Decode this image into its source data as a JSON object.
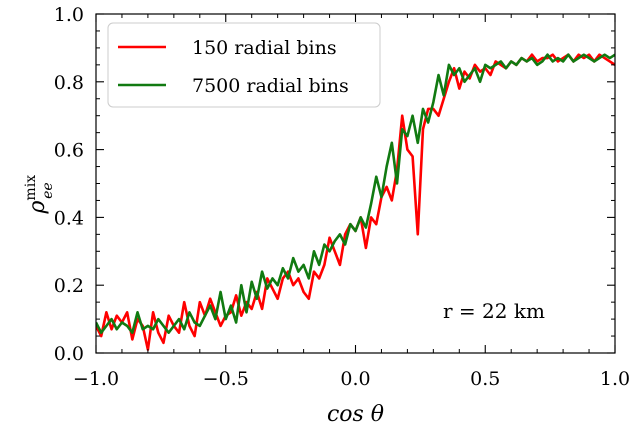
{
  "chart_data": {
    "type": "line",
    "title": "",
    "xlabel": "cos θ",
    "ylabel": "ρ",
    "ylabel_sup": "mix",
    "ylabel_sub": "ee",
    "xlim": [
      -1.0,
      1.0
    ],
    "ylim": [
      0.0,
      1.0
    ],
    "x_ticks": [
      -1.0,
      -0.5,
      0.0,
      0.5,
      1.0
    ],
    "x_tick_labels": [
      "−1.0",
      "−0.5",
      "0.0",
      "0.5",
      "1.0"
    ],
    "y_ticks": [
      0.0,
      0.2,
      0.4,
      0.6,
      0.8,
      1.0
    ],
    "y_tick_labels": [
      "0.0",
      "0.2",
      "0.4",
      "0.6",
      "0.8",
      "1.0"
    ],
    "grid": false,
    "legend_position": "top-left",
    "annotation": "r = 22 km",
    "series": [
      {
        "name": "150 radial bins",
        "color": "#ff0000",
        "x": [
          -1.0,
          -0.98,
          -0.96,
          -0.94,
          -0.92,
          -0.9,
          -0.88,
          -0.86,
          -0.84,
          -0.82,
          -0.8,
          -0.78,
          -0.76,
          -0.74,
          -0.72,
          -0.7,
          -0.68,
          -0.66,
          -0.64,
          -0.62,
          -0.6,
          -0.58,
          -0.56,
          -0.54,
          -0.52,
          -0.5,
          -0.48,
          -0.46,
          -0.44,
          -0.42,
          -0.4,
          -0.38,
          -0.36,
          -0.34,
          -0.32,
          -0.3,
          -0.28,
          -0.26,
          -0.24,
          -0.22,
          -0.2,
          -0.18,
          -0.16,
          -0.14,
          -0.12,
          -0.1,
          -0.08,
          -0.06,
          -0.04,
          -0.02,
          0.0,
          0.02,
          0.04,
          0.06,
          0.08,
          0.1,
          0.12,
          0.14,
          0.16,
          0.18,
          0.2,
          0.22,
          0.24,
          0.26,
          0.28,
          0.3,
          0.32,
          0.34,
          0.36,
          0.38,
          0.4,
          0.42,
          0.44,
          0.46,
          0.48,
          0.5,
          0.52,
          0.54,
          0.56,
          0.58,
          0.6,
          0.62,
          0.64,
          0.66,
          0.68,
          0.7,
          0.72,
          0.74,
          0.76,
          0.78,
          0.8,
          0.82,
          0.84,
          0.86,
          0.88,
          0.9,
          0.92,
          0.94,
          0.96,
          0.98,
          1.0
        ],
        "y": [
          0.08,
          0.05,
          0.12,
          0.07,
          0.11,
          0.09,
          0.12,
          0.04,
          0.1,
          0.08,
          0.01,
          0.12,
          0.06,
          0.03,
          0.11,
          0.08,
          0.06,
          0.15,
          0.08,
          0.05,
          0.15,
          0.11,
          0.16,
          0.12,
          0.08,
          0.11,
          0.12,
          0.17,
          0.11,
          0.15,
          0.13,
          0.18,
          0.13,
          0.22,
          0.19,
          0.16,
          0.22,
          0.24,
          0.2,
          0.22,
          0.18,
          0.16,
          0.24,
          0.22,
          0.26,
          0.34,
          0.3,
          0.26,
          0.35,
          0.38,
          0.36,
          0.4,
          0.31,
          0.4,
          0.38,
          0.46,
          0.49,
          0.45,
          0.54,
          0.7,
          0.6,
          0.58,
          0.35,
          0.66,
          0.72,
          0.72,
          0.7,
          0.75,
          0.8,
          0.84,
          0.78,
          0.83,
          0.81,
          0.85,
          0.83,
          0.84,
          0.82,
          0.86,
          0.85,
          0.84,
          0.86,
          0.85,
          0.87,
          0.86,
          0.88,
          0.86,
          0.87,
          0.87,
          0.88,
          0.86,
          0.87,
          0.88,
          0.86,
          0.88,
          0.87,
          0.88,
          0.86,
          0.88,
          0.87,
          0.86,
          0.85
        ]
      },
      {
        "name": "7500 radial bins",
        "color": "#117a11",
        "x": [
          -1.0,
          -0.98,
          -0.96,
          -0.94,
          -0.92,
          -0.9,
          -0.88,
          -0.86,
          -0.84,
          -0.82,
          -0.8,
          -0.78,
          -0.76,
          -0.74,
          -0.72,
          -0.7,
          -0.68,
          -0.66,
          -0.64,
          -0.62,
          -0.6,
          -0.58,
          -0.56,
          -0.54,
          -0.52,
          -0.5,
          -0.48,
          -0.46,
          -0.44,
          -0.42,
          -0.4,
          -0.38,
          -0.36,
          -0.34,
          -0.32,
          -0.3,
          -0.28,
          -0.26,
          -0.24,
          -0.22,
          -0.2,
          -0.18,
          -0.16,
          -0.14,
          -0.12,
          -0.1,
          -0.08,
          -0.06,
          -0.04,
          -0.02,
          0.0,
          0.02,
          0.04,
          0.06,
          0.08,
          0.1,
          0.12,
          0.14,
          0.16,
          0.18,
          0.2,
          0.22,
          0.24,
          0.26,
          0.28,
          0.3,
          0.32,
          0.34,
          0.36,
          0.38,
          0.4,
          0.42,
          0.44,
          0.46,
          0.48,
          0.5,
          0.52,
          0.54,
          0.56,
          0.58,
          0.6,
          0.62,
          0.64,
          0.66,
          0.68,
          0.7,
          0.72,
          0.74,
          0.76,
          0.78,
          0.8,
          0.82,
          0.84,
          0.86,
          0.88,
          0.9,
          0.92,
          0.94,
          0.96,
          0.98,
          1.0
        ],
        "y": [
          0.09,
          0.06,
          0.08,
          0.1,
          0.07,
          0.09,
          0.08,
          0.06,
          0.12,
          0.07,
          0.08,
          0.07,
          0.1,
          0.08,
          0.06,
          0.08,
          0.1,
          0.07,
          0.12,
          0.09,
          0.08,
          0.11,
          0.14,
          0.1,
          0.18,
          0.1,
          0.14,
          0.09,
          0.2,
          0.12,
          0.21,
          0.16,
          0.24,
          0.19,
          0.22,
          0.2,
          0.25,
          0.22,
          0.28,
          0.24,
          0.26,
          0.22,
          0.3,
          0.26,
          0.32,
          0.3,
          0.33,
          0.35,
          0.32,
          0.38,
          0.36,
          0.4,
          0.37,
          0.44,
          0.52,
          0.46,
          0.55,
          0.62,
          0.5,
          0.66,
          0.64,
          0.7,
          0.62,
          0.72,
          0.68,
          0.74,
          0.82,
          0.76,
          0.85,
          0.82,
          0.84,
          0.8,
          0.82,
          0.84,
          0.8,
          0.85,
          0.84,
          0.85,
          0.86,
          0.84,
          0.86,
          0.85,
          0.87,
          0.86,
          0.87,
          0.85,
          0.86,
          0.88,
          0.86,
          0.87,
          0.86,
          0.88,
          0.86,
          0.87,
          0.88,
          0.87,
          0.86,
          0.87,
          0.88,
          0.87,
          0.88
        ]
      }
    ]
  }
}
